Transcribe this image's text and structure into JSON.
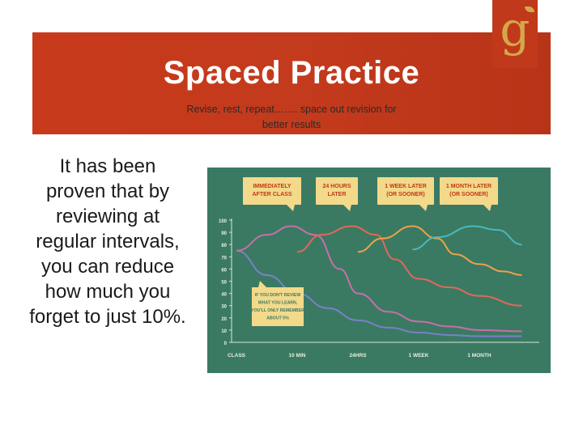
{
  "slide": {
    "title": "Spaced Practice",
    "subtitle_line1": "Revise, rest, repeat……. space out revision for",
    "subtitle_line2": "better results",
    "body_lines": [
      "It has been",
      "proven that by",
      "reviewing at",
      "regular intervals,",
      "you can reduce",
      "how much you",
      "forget to just 10%."
    ],
    "logo_letter": "g"
  },
  "colors": {
    "banner": "#c83a1c",
    "chart_bg": "#3a7a62",
    "callout_bg": "#f3d98a",
    "callout_text": "#c0391a"
  },
  "chart_data": {
    "type": "line",
    "title": "",
    "xlabel": "",
    "ylabel": "",
    "ylim": [
      0,
      100
    ],
    "yticks": [
      0,
      10,
      20,
      30,
      40,
      50,
      60,
      70,
      80,
      90,
      100
    ],
    "xticks": [
      "CLASS",
      "10 MIN",
      "24HRS",
      "1 WEEK",
      "1 MONTH"
    ],
    "callouts": [
      {
        "lines": [
          "IMMEDIATELY",
          "AFTER CLASS"
        ]
      },
      {
        "lines": [
          "24 HOURS",
          "LATER"
        ]
      },
      {
        "lines": [
          "1 WEEK LATER",
          "(OR SOONER)"
        ]
      },
      {
        "lines": [
          "1 MONTH LATER",
          "(OR SOONER)"
        ]
      }
    ],
    "note_lines": [
      "IF YOU DON'T REVIEW",
      "WHAT YOU LEARN,",
      "YOU'LL ONLY REMEMBER",
      "ABOUT 5%"
    ],
    "series": [
      {
        "color": "#7a80c8",
        "points": [
          [
            0,
            75
          ],
          [
            0.5,
            55
          ],
          [
            1,
            40
          ],
          [
            1.5,
            28
          ],
          [
            2,
            18
          ],
          [
            2.5,
            12
          ],
          [
            3,
            8
          ],
          [
            3.5,
            6
          ],
          [
            4,
            5
          ],
          [
            4.7,
            5
          ]
        ]
      },
      {
        "color": "#c86fa8",
        "points": [
          [
            0,
            75
          ],
          [
            0.5,
            88
          ],
          [
            0.9,
            95
          ],
          [
            1.3,
            88
          ],
          [
            1.7,
            60
          ],
          [
            2,
            40
          ],
          [
            2.5,
            25
          ],
          [
            3,
            17
          ],
          [
            3.5,
            13
          ],
          [
            4,
            10
          ],
          [
            4.7,
            9
          ]
        ]
      },
      {
        "color": "#e2685a",
        "points": [
          [
            1.0,
            74
          ],
          [
            1.4,
            88
          ],
          [
            1.9,
            95
          ],
          [
            2.3,
            88
          ],
          [
            2.6,
            68
          ],
          [
            3,
            52
          ],
          [
            3.5,
            45
          ],
          [
            4,
            38
          ],
          [
            4.7,
            30
          ]
        ]
      },
      {
        "color": "#f0a04a",
        "points": [
          [
            2.0,
            74
          ],
          [
            2.4,
            85
          ],
          [
            2.9,
            95
          ],
          [
            3.3,
            85
          ],
          [
            3.6,
            72
          ],
          [
            4,
            64
          ],
          [
            4.4,
            58
          ],
          [
            4.7,
            55
          ]
        ]
      },
      {
        "color": "#4ab8c0",
        "points": [
          [
            2.9,
            76
          ],
          [
            3.3,
            86
          ],
          [
            3.9,
            95
          ],
          [
            4.3,
            92
          ],
          [
            4.7,
            80
          ]
        ]
      }
    ]
  }
}
